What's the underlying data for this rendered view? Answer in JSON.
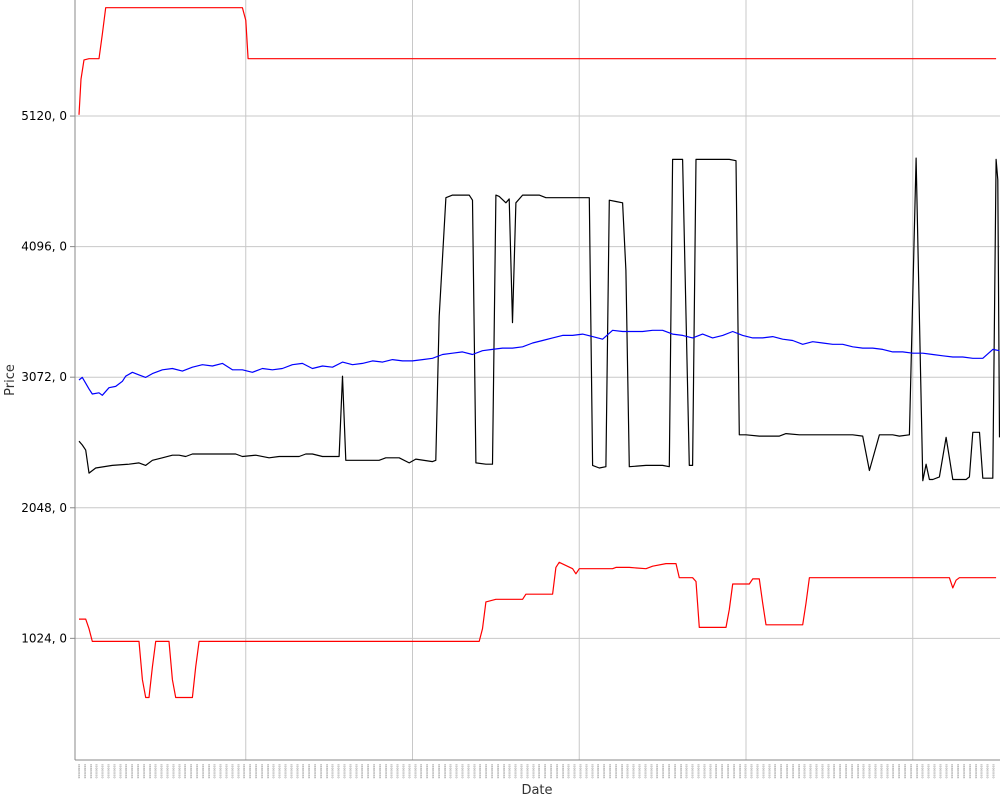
{
  "chart_data": {
    "type": "line",
    "xlabel": "Date",
    "ylabel": "Price",
    "y_ticks": [
      {
        "value": 1024,
        "label": "1024, 0"
      },
      {
        "value": 2048,
        "label": "2048, 0"
      },
      {
        "value": 3072,
        "label": "3072, 0"
      },
      {
        "value": 4096,
        "label": "4096, 0"
      },
      {
        "value": 5120,
        "label": "5120, 0"
      }
    ],
    "x_gridlines": [
      50,
      100,
      150,
      200,
      250
    ],
    "grid": true,
    "legend": "none",
    "x_range": [
      0,
      275
    ],
    "ylim": [
      70,
      6030
    ],
    "series": [
      {
        "color": "#ff0000",
        "points": [
          [
            0,
            5130
          ],
          [
            0.6,
            5410
          ],
          [
            1.5,
            5560
          ],
          [
            3,
            5570
          ],
          [
            6,
            5570
          ],
          [
            7,
            5760
          ],
          [
            8,
            5970
          ],
          [
            10,
            5970
          ],
          [
            40,
            5970
          ],
          [
            49,
            5970
          ],
          [
            50,
            5870
          ],
          [
            50.7,
            5570
          ],
          [
            70,
            5570
          ],
          [
            100,
            5570
          ],
          [
            150,
            5570
          ],
          [
            200,
            5570
          ],
          [
            250,
            5570
          ],
          [
            275,
            5570
          ]
        ]
      },
      {
        "color": "#ff0000",
        "points": [
          [
            0,
            1175
          ],
          [
            2,
            1175
          ],
          [
            3,
            1100
          ],
          [
            4,
            1000
          ],
          [
            10,
            1000
          ],
          [
            18,
            1000
          ],
          [
            19,
            700
          ],
          [
            20,
            560
          ],
          [
            21,
            560
          ],
          [
            22,
            800
          ],
          [
            23,
            1000
          ],
          [
            27,
            1000
          ],
          [
            28,
            700
          ],
          [
            29,
            560
          ],
          [
            34,
            560
          ],
          [
            35,
            800
          ],
          [
            36,
            1000
          ],
          [
            60,
            1000
          ],
          [
            100,
            1000
          ],
          [
            120,
            1000
          ],
          [
            121,
            1100
          ],
          [
            122,
            1310
          ],
          [
            125,
            1330
          ],
          [
            133,
            1330
          ],
          [
            134,
            1370
          ],
          [
            142,
            1370
          ],
          [
            143,
            1580
          ],
          [
            144,
            1620
          ],
          [
            148,
            1570
          ],
          [
            149,
            1530
          ],
          [
            150,
            1570
          ],
          [
            160,
            1570
          ],
          [
            161,
            1580
          ],
          [
            165,
            1580
          ],
          [
            170,
            1570
          ],
          [
            172,
            1590
          ],
          [
            176,
            1610
          ],
          [
            177,
            1610
          ],
          [
            179,
            1610
          ],
          [
            180,
            1500
          ],
          [
            184,
            1500
          ],
          [
            185,
            1470
          ],
          [
            186,
            1110
          ],
          [
            194,
            1110
          ],
          [
            195,
            1250
          ],
          [
            196,
            1450
          ],
          [
            201,
            1450
          ],
          [
            202,
            1490
          ],
          [
            204,
            1490
          ],
          [
            205,
            1300
          ],
          [
            206,
            1130
          ],
          [
            217,
            1130
          ],
          [
            218,
            1300
          ],
          [
            219,
            1500
          ],
          [
            250,
            1500
          ],
          [
            261,
            1500
          ],
          [
            262,
            1420
          ],
          [
            263,
            1480
          ],
          [
            264,
            1500
          ],
          [
            275,
            1500
          ]
        ]
      },
      {
        "color": "#000000",
        "points": [
          [
            0,
            2570
          ],
          [
            1,
            2540
          ],
          [
            2,
            2500
          ],
          [
            3,
            2320
          ],
          [
            5,
            2360
          ],
          [
            10,
            2380
          ],
          [
            15,
            2390
          ],
          [
            18,
            2400
          ],
          [
            20,
            2380
          ],
          [
            22,
            2420
          ],
          [
            25,
            2440
          ],
          [
            28,
            2460
          ],
          [
            30,
            2460
          ],
          [
            32,
            2450
          ],
          [
            34,
            2470
          ],
          [
            40,
            2470
          ],
          [
            47,
            2470
          ],
          [
            49,
            2450
          ],
          [
            53,
            2460
          ],
          [
            57,
            2440
          ],
          [
            60,
            2450
          ],
          [
            66,
            2450
          ],
          [
            68,
            2470
          ],
          [
            70,
            2470
          ],
          [
            73,
            2450
          ],
          [
            78,
            2450
          ],
          [
            79,
            3080
          ],
          [
            80,
            2420
          ],
          [
            90,
            2420
          ],
          [
            92,
            2440
          ],
          [
            96,
            2440
          ],
          [
            99,
            2400
          ],
          [
            101,
            2430
          ],
          [
            106,
            2410
          ],
          [
            107,
            2420
          ],
          [
            108,
            3550
          ],
          [
            110,
            4480
          ],
          [
            112,
            4500
          ],
          [
            117,
            4500
          ],
          [
            118,
            4460
          ],
          [
            119,
            2400
          ],
          [
            122,
            2390
          ],
          [
            124,
            2390
          ],
          [
            125,
            4500
          ],
          [
            126,
            4490
          ],
          [
            128,
            4440
          ],
          [
            129,
            4470
          ],
          [
            130,
            3500
          ],
          [
            131,
            4440
          ],
          [
            133,
            4500
          ],
          [
            138,
            4500
          ],
          [
            140,
            4480
          ],
          [
            153,
            4480
          ],
          [
            154,
            2380
          ],
          [
            156,
            2360
          ],
          [
            158,
            2370
          ],
          [
            159,
            4460
          ],
          [
            161,
            4450
          ],
          [
            163,
            4440
          ],
          [
            164,
            3910
          ],
          [
            165,
            2370
          ],
          [
            170,
            2380
          ],
          [
            175,
            2380
          ],
          [
            177,
            2370
          ],
          [
            178,
            4780
          ],
          [
            181,
            4780
          ],
          [
            183,
            2380
          ],
          [
            184,
            2380
          ],
          [
            185,
            4780
          ],
          [
            186,
            4780
          ],
          [
            193,
            4780
          ],
          [
            195,
            4780
          ],
          [
            197,
            4770
          ],
          [
            198,
            2620
          ],
          [
            200,
            2620
          ],
          [
            204,
            2610
          ],
          [
            210,
            2610
          ],
          [
            212,
            2630
          ],
          [
            216,
            2620
          ],
          [
            220,
            2620
          ],
          [
            226,
            2620
          ],
          [
            232,
            2620
          ],
          [
            235,
            2610
          ],
          [
            237,
            2340
          ],
          [
            240,
            2620
          ],
          [
            244,
            2620
          ],
          [
            246,
            2610
          ],
          [
            249,
            2620
          ],
          [
            251,
            4790
          ],
          [
            253,
            2260
          ],
          [
            254,
            2390
          ],
          [
            255,
            2270
          ],
          [
            256,
            2270
          ],
          [
            258,
            2290
          ],
          [
            260,
            2600
          ],
          [
            261,
            2440
          ],
          [
            262,
            2270
          ],
          [
            266,
            2270
          ],
          [
            267,
            2290
          ],
          [
            268,
            2640
          ],
          [
            270,
            2640
          ],
          [
            271,
            2280
          ],
          [
            274,
            2280
          ],
          [
            275,
            4780
          ],
          [
            275.5,
            4620
          ],
          [
            276,
            2600
          ]
        ]
      },
      {
        "color": "#0000ff",
        "points": [
          [
            0,
            3050
          ],
          [
            1,
            3070
          ],
          [
            3,
            2980
          ],
          [
            4,
            2940
          ],
          [
            6,
            2950
          ],
          [
            7,
            2930
          ],
          [
            9,
            2990
          ],
          [
            11,
            3000
          ],
          [
            13,
            3040
          ],
          [
            14,
            3080
          ],
          [
            16,
            3110
          ],
          [
            18,
            3090
          ],
          [
            20,
            3070
          ],
          [
            22,
            3100
          ],
          [
            25,
            3130
          ],
          [
            28,
            3140
          ],
          [
            31,
            3120
          ],
          [
            34,
            3150
          ],
          [
            37,
            3170
          ],
          [
            40,
            3160
          ],
          [
            43,
            3180
          ],
          [
            46,
            3130
          ],
          [
            49,
            3130
          ],
          [
            52,
            3110
          ],
          [
            55,
            3140
          ],
          [
            58,
            3130
          ],
          [
            61,
            3140
          ],
          [
            64,
            3170
          ],
          [
            67,
            3180
          ],
          [
            70,
            3140
          ],
          [
            73,
            3160
          ],
          [
            76,
            3150
          ],
          [
            79,
            3190
          ],
          [
            82,
            3170
          ],
          [
            85,
            3180
          ],
          [
            88,
            3200
          ],
          [
            91,
            3190
          ],
          [
            94,
            3210
          ],
          [
            97,
            3200
          ],
          [
            100,
            3200
          ],
          [
            103,
            3210
          ],
          [
            106,
            3220
          ],
          [
            109,
            3250
          ],
          [
            112,
            3260
          ],
          [
            115,
            3270
          ],
          [
            118,
            3250
          ],
          [
            121,
            3280
          ],
          [
            124,
            3290
          ],
          [
            127,
            3300
          ],
          [
            130,
            3300
          ],
          [
            133,
            3310
          ],
          [
            136,
            3340
          ],
          [
            139,
            3360
          ],
          [
            142,
            3380
          ],
          [
            145,
            3400
          ],
          [
            148,
            3400
          ],
          [
            151,
            3410
          ],
          [
            154,
            3390
          ],
          [
            157,
            3370
          ],
          [
            160,
            3440
          ],
          [
            163,
            3430
          ],
          [
            166,
            3430
          ],
          [
            169,
            3430
          ],
          [
            172,
            3440
          ],
          [
            175,
            3440
          ],
          [
            178,
            3410
          ],
          [
            181,
            3400
          ],
          [
            184,
            3380
          ],
          [
            187,
            3410
          ],
          [
            190,
            3380
          ],
          [
            193,
            3400
          ],
          [
            196,
            3430
          ],
          [
            199,
            3400
          ],
          [
            202,
            3380
          ],
          [
            205,
            3380
          ],
          [
            208,
            3390
          ],
          [
            211,
            3370
          ],
          [
            214,
            3360
          ],
          [
            217,
            3330
          ],
          [
            220,
            3350
          ],
          [
            223,
            3340
          ],
          [
            226,
            3330
          ],
          [
            229,
            3330
          ],
          [
            232,
            3310
          ],
          [
            235,
            3300
          ],
          [
            238,
            3300
          ],
          [
            241,
            3290
          ],
          [
            244,
            3270
          ],
          [
            247,
            3270
          ],
          [
            250,
            3260
          ],
          [
            253,
            3260
          ],
          [
            256,
            3250
          ],
          [
            259,
            3240
          ],
          [
            262,
            3230
          ],
          [
            265,
            3230
          ],
          [
            268,
            3220
          ],
          [
            271,
            3220
          ],
          [
            274,
            3290
          ],
          [
            276,
            3280
          ]
        ]
      }
    ]
  }
}
